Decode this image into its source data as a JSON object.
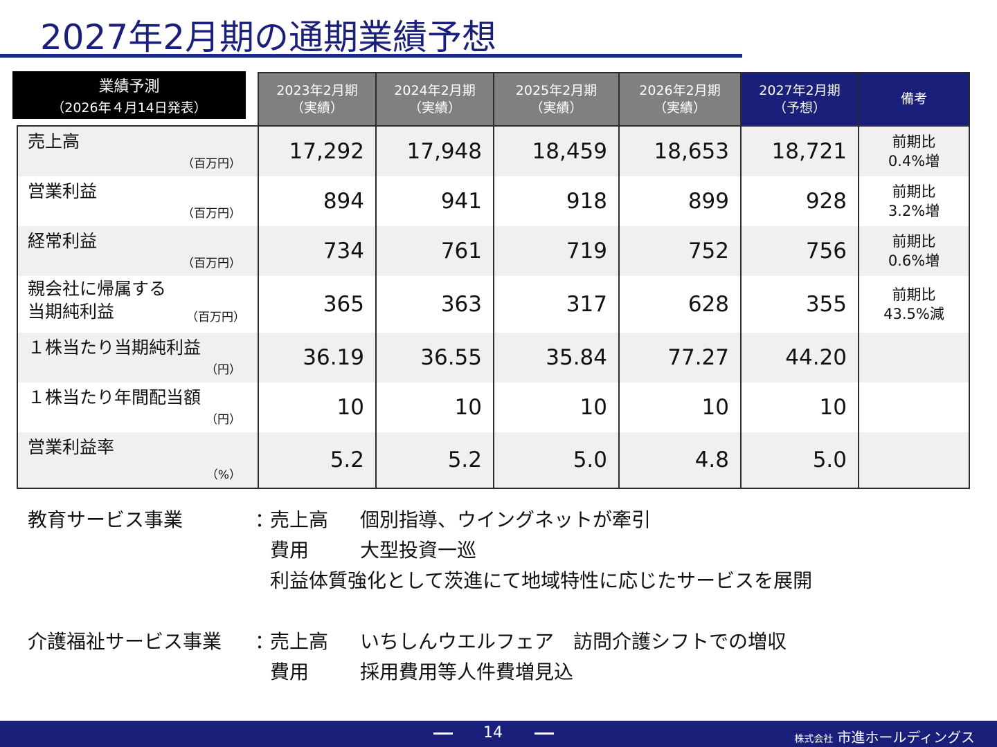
{
  "title": "2027年2月期の通期業績予想",
  "forecast_box": {
    "line1": "業績予測",
    "line2": "（2026年４月14日発表）"
  },
  "columns": [
    {
      "year": "2023年2月期",
      "kind": "（実績）"
    },
    {
      "year": "2024年2月期",
      "kind": "（実績）"
    },
    {
      "year": "2025年2月期",
      "kind": "（実績）"
    },
    {
      "year": "2026年2月期",
      "kind": "（実績）"
    },
    {
      "year": "2027年2月期",
      "kind": "（予想）"
    }
  ],
  "remarks_header": "備考",
  "rows": [
    {
      "name1": "売上高",
      "name2": "",
      "unit": "（百万円）",
      "values": [
        "17,292",
        "17,948",
        "18,459",
        "18,653",
        "18,721"
      ],
      "remark1": "前期比",
      "remark2": "0.4%増"
    },
    {
      "name1": "営業利益",
      "name2": "",
      "unit": "（百万円）",
      "values": [
        "894",
        "941",
        "918",
        "899",
        "928"
      ],
      "remark1": "前期比",
      "remark2": "3.2%増"
    },
    {
      "name1": "経常利益",
      "name2": "",
      "unit": "（百万円）",
      "values": [
        "734",
        "761",
        "719",
        "752",
        "756"
      ],
      "remark1": "前期比",
      "remark2": "0.6%増"
    },
    {
      "name1": "親会社に帰属する",
      "name2": "当期純利益",
      "unit": "（百万円）",
      "values": [
        "365",
        "363",
        "317",
        "628",
        "355"
      ],
      "remark1": "前期比",
      "remark2": "43.5%減"
    },
    {
      "name1": "１株当たり当期純利益",
      "name2": "",
      "unit": "（円）",
      "values": [
        "36.19",
        "36.55",
        "35.84",
        "77.27",
        "44.20"
      ],
      "remark1": "",
      "remark2": ""
    },
    {
      "name1": "１株当たり年間配当額",
      "name2": "",
      "unit": "（円）",
      "values": [
        "10",
        "10",
        "10",
        "10",
        "10"
      ],
      "remark1": "",
      "remark2": ""
    },
    {
      "name1": "営業利益率",
      "name2": "",
      "unit": "（%）",
      "values": [
        "5.2",
        "5.2",
        "5.0",
        "4.8",
        "5.0"
      ],
      "remark1": "",
      "remark2": ""
    }
  ],
  "notes": {
    "education": {
      "label": "教育サービス事業",
      "colon": "：",
      "lines": [
        {
          "sub": "売上高",
          "detail": "個別指導、ウイングネットが牽引"
        },
        {
          "sub": "費用",
          "detail": "大型投資一巡"
        },
        {
          "sub": "",
          "detail": "",
          "full": "利益体質強化として茨進にて地域特性に応じたサービスを展開"
        }
      ]
    },
    "care": {
      "label": "介護福祉サービス事業",
      "colon": "：",
      "lines": [
        {
          "sub": "売上高",
          "detail": "いちしんウエルフェア　訪問介護シフトでの増収"
        },
        {
          "sub": "費用",
          "detail": "採用費用等人件費増見込"
        }
      ]
    }
  },
  "footer": {
    "page": "14",
    "company_small": "株式会社",
    "company_name": "市進ホールディングス"
  },
  "colors": {
    "navy": "#1a1f7a",
    "gray_header": "#808080",
    "row_shade": "#f0f0f0"
  }
}
